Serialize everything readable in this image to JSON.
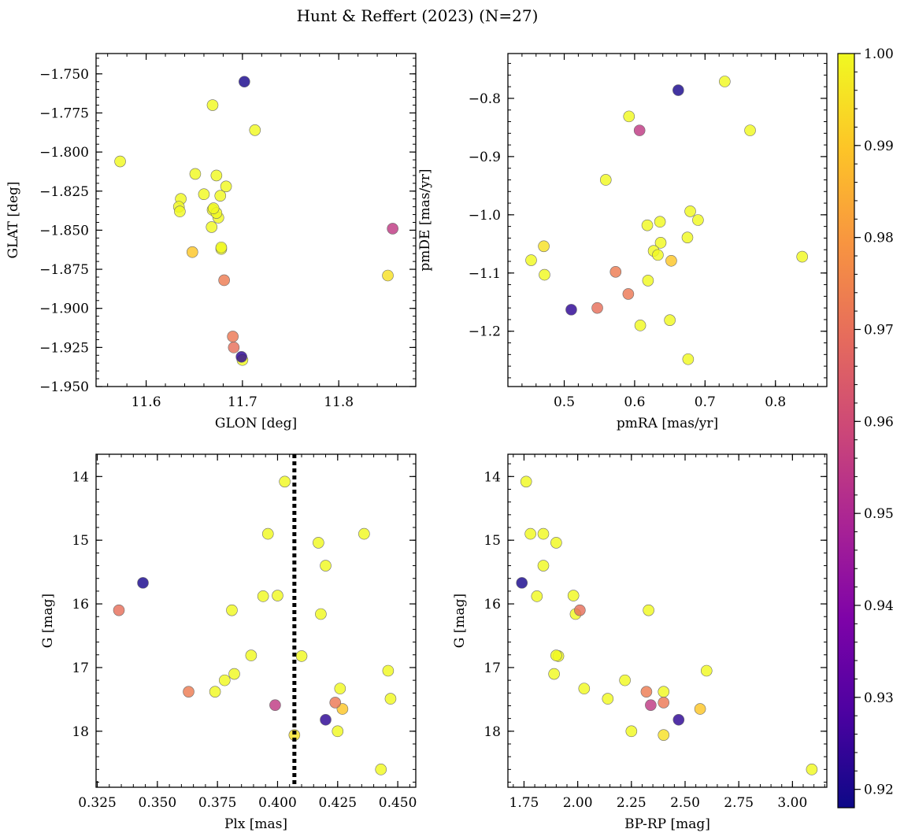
{
  "figure": {
    "title": "Hunt & Reffert (2023) (N=27)"
  },
  "colorbar": {
    "colormap": "plasma",
    "range": [
      0.918,
      1.0
    ],
    "ticks": [
      0.92,
      0.93,
      0.94,
      0.95,
      0.96,
      0.97,
      0.98,
      0.99,
      1.0
    ],
    "tick_labels": [
      "0.92",
      "0.93",
      "0.94",
      "0.95",
      "0.96",
      "0.97",
      "0.98",
      "0.99",
      "1.00"
    ]
  },
  "stars": {
    "prob": [
      1.0,
      0.92,
      1.0,
      1.0,
      0.995,
      1.0,
      1.0,
      1.0,
      1.0,
      1.0,
      1.0,
      1.0,
      1.0,
      1.0,
      1.0,
      1.0,
      1.0,
      0.955,
      0.99,
      0.973,
      1.0,
      0.972,
      0.97,
      0.923,
      1.0,
      1.0,
      1.0
    ],
    "glon": [
      11.669,
      11.702,
      11.713,
      11.573,
      11.851,
      11.651,
      11.673,
      11.683,
      11.66,
      11.636,
      11.677,
      11.634,
      11.669,
      11.675,
      11.635,
      11.668,
      11.678,
      11.856,
      11.648,
      11.681,
      11.678,
      11.69,
      11.691,
      11.699,
      11.7,
      11.673,
      11.67
    ],
    "glat": [
      -1.77,
      -1.755,
      -1.786,
      -1.806,
      -1.879,
      -1.814,
      -1.815,
      -1.822,
      -1.827,
      -1.83,
      -1.828,
      -1.835,
      -1.837,
      -1.842,
      -1.838,
      -1.848,
      -1.862,
      -1.849,
      -1.864,
      -1.882,
      -1.861,
      -1.918,
      -1.925,
      -1.931,
      -1.933,
      -1.839,
      -1.836
    ],
    "pmra": [
      0.728,
      0.662,
      0.559,
      0.592,
      0.471,
      0.69,
      0.764,
      0.618,
      0.637,
      0.627,
      0.679,
      0.838,
      0.675,
      0.453,
      0.472,
      0.633,
      0.636,
      0.607,
      0.652,
      0.573,
      0.619,
      0.591,
      0.547,
      0.51,
      0.608,
      0.65,
      0.676
    ],
    "pmde": [
      -0.771,
      -0.786,
      -0.94,
      -0.831,
      -1.054,
      -1.009,
      -0.855,
      -1.018,
      -1.048,
      -1.062,
      -0.994,
      -1.072,
      -1.039,
      -1.078,
      -1.103,
      -1.069,
      -1.012,
      -0.855,
      -1.079,
      -1.098,
      -1.113,
      -1.136,
      -1.16,
      -1.163,
      -1.19,
      -1.181,
      -1.248
    ],
    "plx": [
      0.403,
      0.344,
      0.396,
      0.436,
      0.407,
      0.417,
      0.42,
      0.394,
      0.4,
      0.381,
      0.418,
      0.41,
      0.389,
      0.446,
      0.382,
      0.426,
      0.374,
      0.399,
      0.427,
      0.363,
      0.378,
      0.424,
      0.334,
      0.42,
      0.425,
      0.443,
      0.447
    ],
    "g": [
      14.08,
      15.67,
      14.9,
      14.9,
      18.06,
      15.04,
      15.4,
      15.88,
      15.87,
      16.1,
      16.16,
      16.82,
      16.81,
      17.05,
      17.1,
      17.33,
      17.38,
      17.59,
      17.65,
      17.38,
      17.2,
      17.55,
      16.1,
      17.82,
      18.0,
      18.6,
      17.49
    ],
    "bprp": [
      1.76,
      1.74,
      1.78,
      1.84,
      2.4,
      1.9,
      1.84,
      1.81,
      1.98,
      2.33,
      1.99,
      1.91,
      1.9,
      2.6,
      1.89,
      2.03,
      2.4,
      2.34,
      2.57,
      2.32,
      2.22,
      2.4,
      2.01,
      2.47,
      2.25,
      3.09,
      2.14
    ]
  },
  "chart_data": [
    {
      "type": "scatter",
      "id": "glon-glat",
      "xlabel": "GLON [deg]",
      "ylabel": "GLAT [deg]",
      "x_field": "glon",
      "y_field": "glat",
      "xlim": [
        11.548,
        11.88
      ],
      "ylim": [
        -1.95,
        -1.737
      ],
      "y_inverted": false,
      "xticks": [
        11.6,
        11.7,
        11.8
      ],
      "xtick_labels": [
        "11.6",
        "11.7",
        "11.8"
      ],
      "xminor": 0.02,
      "yticks": [
        -1.75,
        -1.775,
        -1.8,
        -1.825,
        -1.85,
        -1.875,
        -1.9,
        -1.925,
        -1.95
      ],
      "ytick_labels": [
        "−1.750",
        "−1.775",
        "−1.800",
        "−1.825",
        "−1.850",
        "−1.875",
        "−1.900",
        "−1.925",
        "−1.950"
      ],
      "yminor": 0.005,
      "vline": null
    },
    {
      "type": "scatter",
      "id": "pmra-pmde",
      "xlabel": "pmRA [mas/yr]",
      "ylabel": "pmDE [mas/yr]",
      "x_field": "pmra",
      "y_field": "pmde",
      "xlim": [
        0.42,
        0.873
      ],
      "ylim": [
        -1.295,
        -0.723
      ],
      "y_inverted": false,
      "xticks": [
        0.5,
        0.6,
        0.7,
        0.8
      ],
      "xtick_labels": [
        "0.5",
        "0.6",
        "0.7",
        "0.8"
      ],
      "xminor": 0.02,
      "yticks": [
        -0.8,
        -0.9,
        -1.0,
        -1.1,
        -1.2
      ],
      "ytick_labels": [
        "−0.8",
        "−0.9",
        "−1.0",
        "−1.1",
        "−1.2"
      ],
      "yminor": 0.02,
      "vline": null
    },
    {
      "type": "scatter",
      "id": "plx-g",
      "xlabel": "Plx [mas]",
      "ylabel": "G [mag]",
      "x_field": "plx",
      "y_field": "g",
      "xlim": [
        0.3245,
        0.4575
      ],
      "ylim": [
        13.65,
        18.88
      ],
      "y_inverted": true,
      "xticks": [
        0.325,
        0.35,
        0.375,
        0.4,
        0.425,
        0.45
      ],
      "xtick_labels": [
        "0.325",
        "0.350",
        "0.375",
        "0.400",
        "0.425",
        "0.450"
      ],
      "xminor": 0.005,
      "yticks": [
        14,
        15,
        16,
        17,
        18
      ],
      "ytick_labels": [
        "14",
        "15",
        "16",
        "17",
        "18"
      ],
      "yminor": 0.2,
      "vline": 0.407
    },
    {
      "type": "scatter",
      "id": "bprp-g",
      "xlabel": "BP-RP [mag]",
      "ylabel": "G [mag]",
      "x_field": "bprp",
      "y_field": "g",
      "xlim": [
        1.675,
        3.16
      ],
      "ylim": [
        13.65,
        18.88
      ],
      "y_inverted": true,
      "xticks": [
        1.75,
        2.0,
        2.25,
        2.5,
        2.75,
        3.0
      ],
      "xtick_labels": [
        "1.75",
        "2.00",
        "2.25",
        "2.50",
        "2.75",
        "3.00"
      ],
      "xminor": 0.05,
      "yticks": [
        14,
        15,
        16,
        17,
        18
      ],
      "ytick_labels": [
        "14",
        "15",
        "16",
        "17",
        "18"
      ],
      "yminor": 0.2,
      "vline": null
    }
  ]
}
